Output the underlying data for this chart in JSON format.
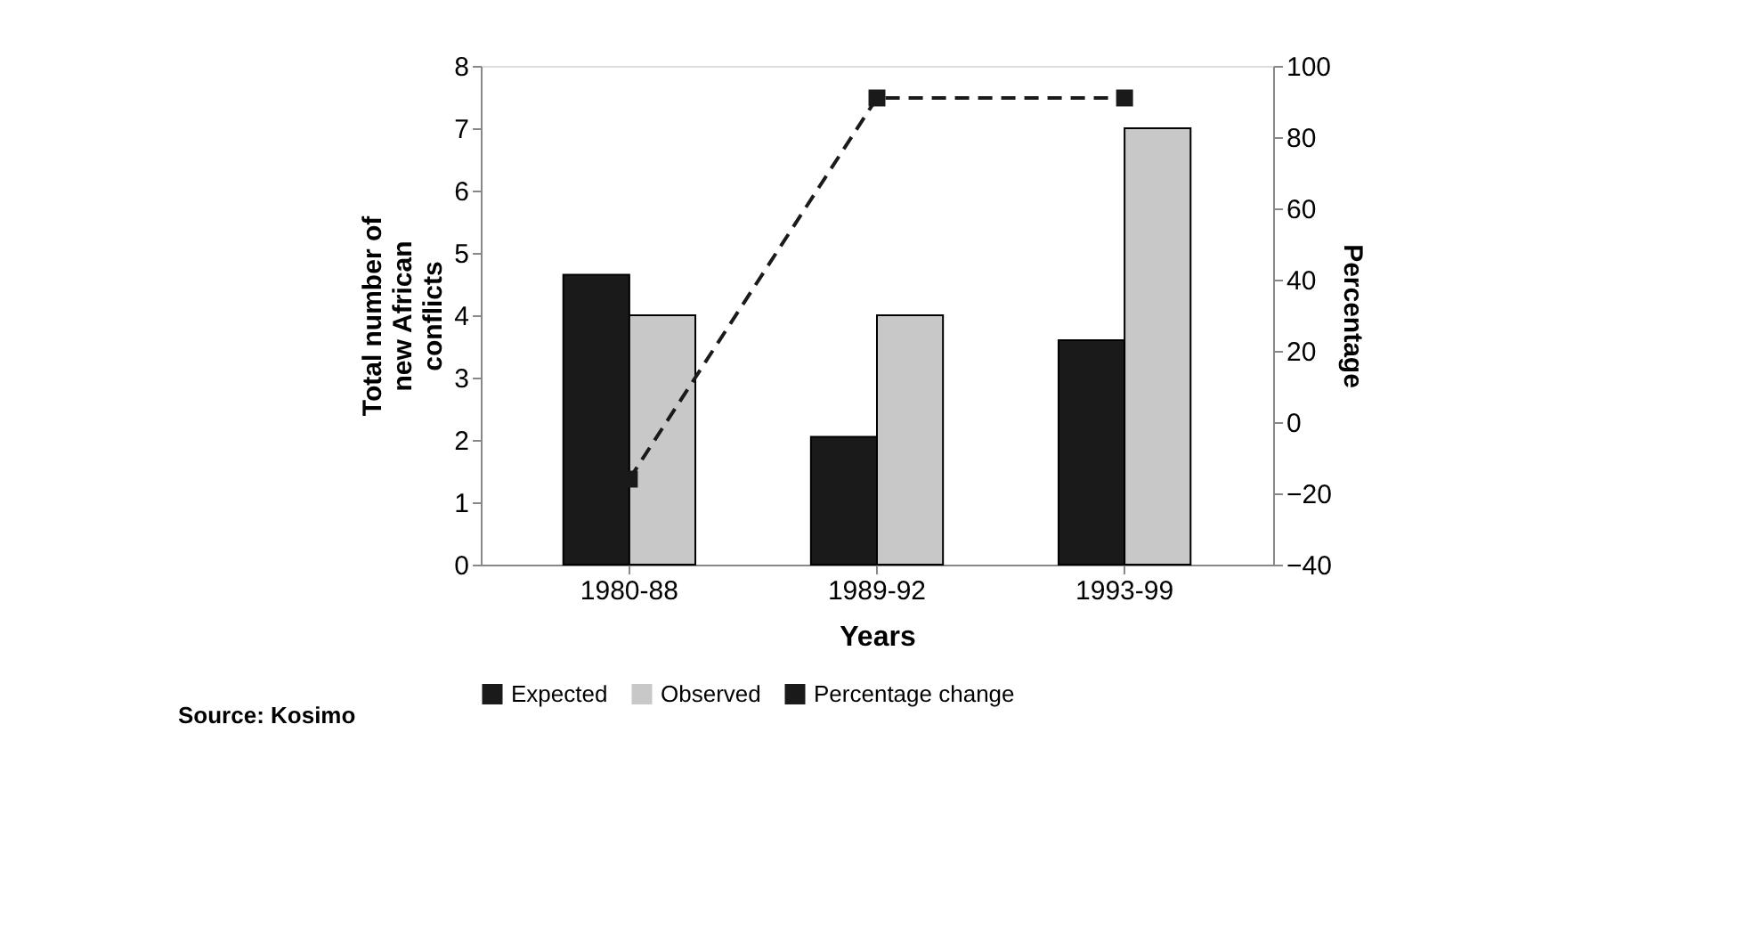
{
  "chart_data": {
    "type": "bar",
    "xlabel": "Years",
    "ylabel": "Total number of new African conflicts",
    "y2label": "Percentage",
    "categories": [
      "1980-88",
      "1989-92",
      "1993-99"
    ],
    "series": [
      {
        "name": "Expected",
        "color": "#1a1a1a",
        "values": [
          4.65,
          2.05,
          3.6
        ]
      },
      {
        "name": "Observed",
        "color": "#c8c8c8",
        "values": [
          4,
          4,
          7
        ]
      },
      {
        "name": "Percentage change",
        "type": "line",
        "axis": "y2",
        "color": "#1a1a1a",
        "marker": "square",
        "line_style": "dashed",
        "values": [
          -16,
          91,
          91
        ]
      }
    ],
    "ylim": [
      0,
      8
    ],
    "yticks": [
      0,
      1,
      2,
      3,
      4,
      5,
      6,
      7,
      8
    ],
    "y2lim": [
      -40,
      100
    ],
    "y2ticks": [
      -40,
      -20,
      0,
      20,
      40,
      60,
      80,
      100
    ],
    "grid": false,
    "legend": "bottom",
    "annotations": [
      "Source: Kosimo"
    ]
  }
}
